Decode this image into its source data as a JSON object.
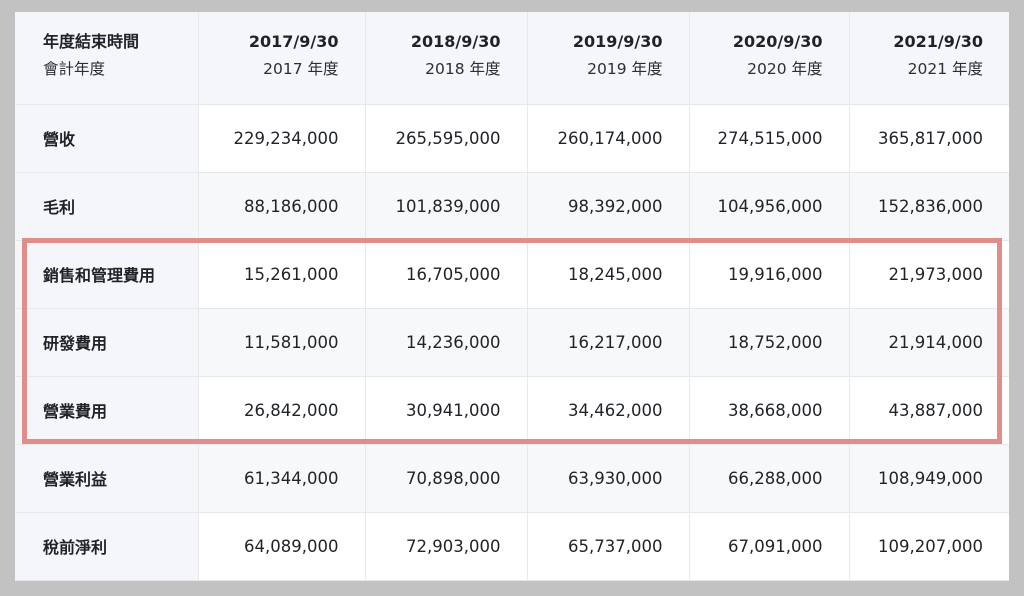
{
  "table": {
    "header": {
      "label_main": "年度結束時間",
      "label_sub": "會計年度",
      "columns": [
        {
          "date": "2017/9/30",
          "fiscal_year": "2017 年度"
        },
        {
          "date": "2018/9/30",
          "fiscal_year": "2018 年度"
        },
        {
          "date": "2019/9/30",
          "fiscal_year": "2019 年度"
        },
        {
          "date": "2020/9/30",
          "fiscal_year": "2020 年度"
        },
        {
          "date": "2021/9/30",
          "fiscal_year": "2021 年度"
        }
      ]
    },
    "rows": [
      {
        "label": "營收",
        "values": [
          "229,234,000",
          "265,595,000",
          "260,174,000",
          "274,515,000",
          "365,817,000"
        ]
      },
      {
        "label": "毛利",
        "values": [
          "88,186,000",
          "101,839,000",
          "98,392,000",
          "104,956,000",
          "152,836,000"
        ]
      },
      {
        "label": "銷售和管理費用",
        "values": [
          "15,261,000",
          "16,705,000",
          "18,245,000",
          "19,916,000",
          "21,973,000"
        ]
      },
      {
        "label": "研發費用",
        "values": [
          "11,581,000",
          "14,236,000",
          "16,217,000",
          "18,752,000",
          "21,914,000"
        ]
      },
      {
        "label": "營業費用",
        "values": [
          "26,842,000",
          "30,941,000",
          "34,462,000",
          "38,668,000",
          "43,887,000"
        ]
      },
      {
        "label": "營業利益",
        "values": [
          "61,344,000",
          "70,898,000",
          "63,930,000",
          "66,288,000",
          "108,949,000"
        ]
      },
      {
        "label": "稅前淨利",
        "values": [
          "64,089,000",
          "72,903,000",
          "65,737,000",
          "67,091,000",
          "109,207,000"
        ]
      }
    ]
  },
  "highlight": {
    "color": "#df8e8a"
  }
}
